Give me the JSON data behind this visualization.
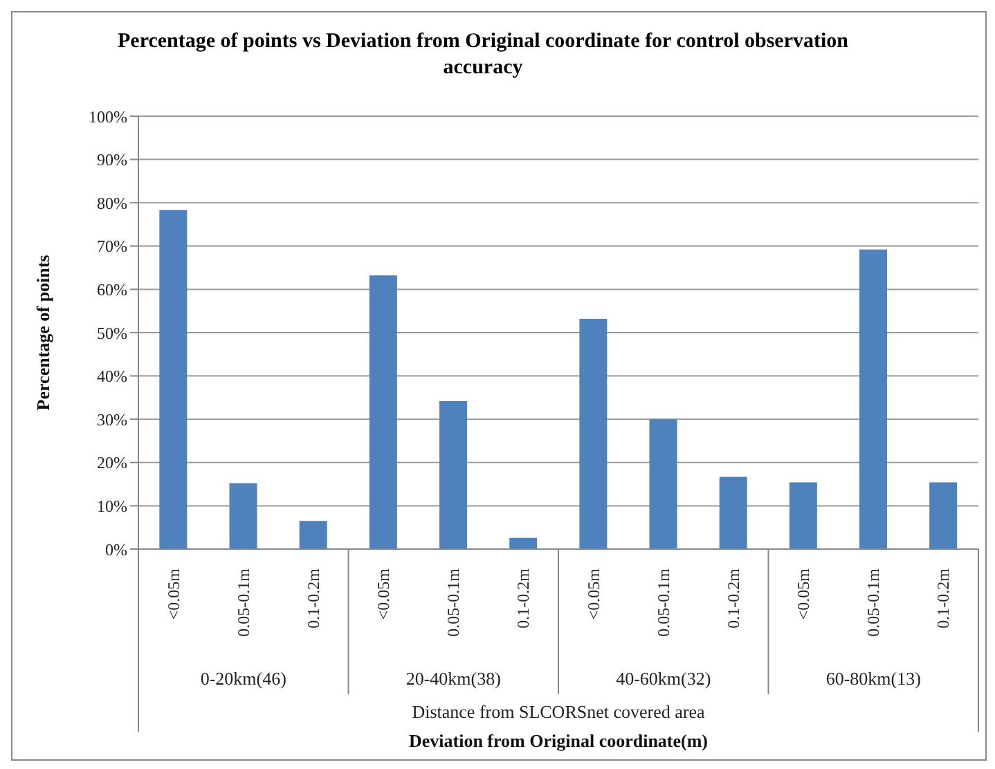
{
  "chart_data": {
    "type": "bar",
    "title": "Percentage of points vs Deviation from  Original  coordinate for control observation accuracy",
    "ylabel": "Percentage of points",
    "categories": [
      "<0.05m",
      "0.05-0.1m",
      "0.1-0.2m",
      "<0.05m",
      "0.05-0.1m",
      "0.1-0.2m",
      "<0.05m",
      "0.05-0.1m",
      "0.1-0.2m",
      "<0.05m",
      "0.05-0.1m",
      "0.1-0.2m"
    ],
    "values": [
      78.3,
      15.2,
      6.5,
      63.2,
      34.2,
      2.6,
      53.2,
      30.0,
      16.7,
      15.4,
      69.2,
      15.4
    ],
    "color": "#4f81bd",
    "annotations": [
      "0-20km(46)",
      "20-40km(38)",
      "40-60km(32)",
      "60-80km(13)",
      "Distance from SLCORSnet covered area",
      "Deviation  from  Original coordinate(m)"
    ],
    "ylim": [
      0,
      100
    ],
    "yticks": [
      {
        "value": 0,
        "label": "0%"
      },
      {
        "value": 10,
        "label": "10%"
      },
      {
        "value": 20,
        "label": "20%"
      },
      {
        "value": 30,
        "label": "30%"
      },
      {
        "value": 40,
        "label": "40%"
      },
      {
        "value": 50,
        "label": "50%"
      },
      {
        "value": 60,
        "label": "60%"
      },
      {
        "value": 70,
        "label": "70%"
      },
      {
        "value": 80,
        "label": "80%"
      },
      {
        "value": 90,
        "label": "90%"
      },
      {
        "value": 100,
        "label": "100%"
      }
    ],
    "grid": "y",
    "legend": false
  }
}
